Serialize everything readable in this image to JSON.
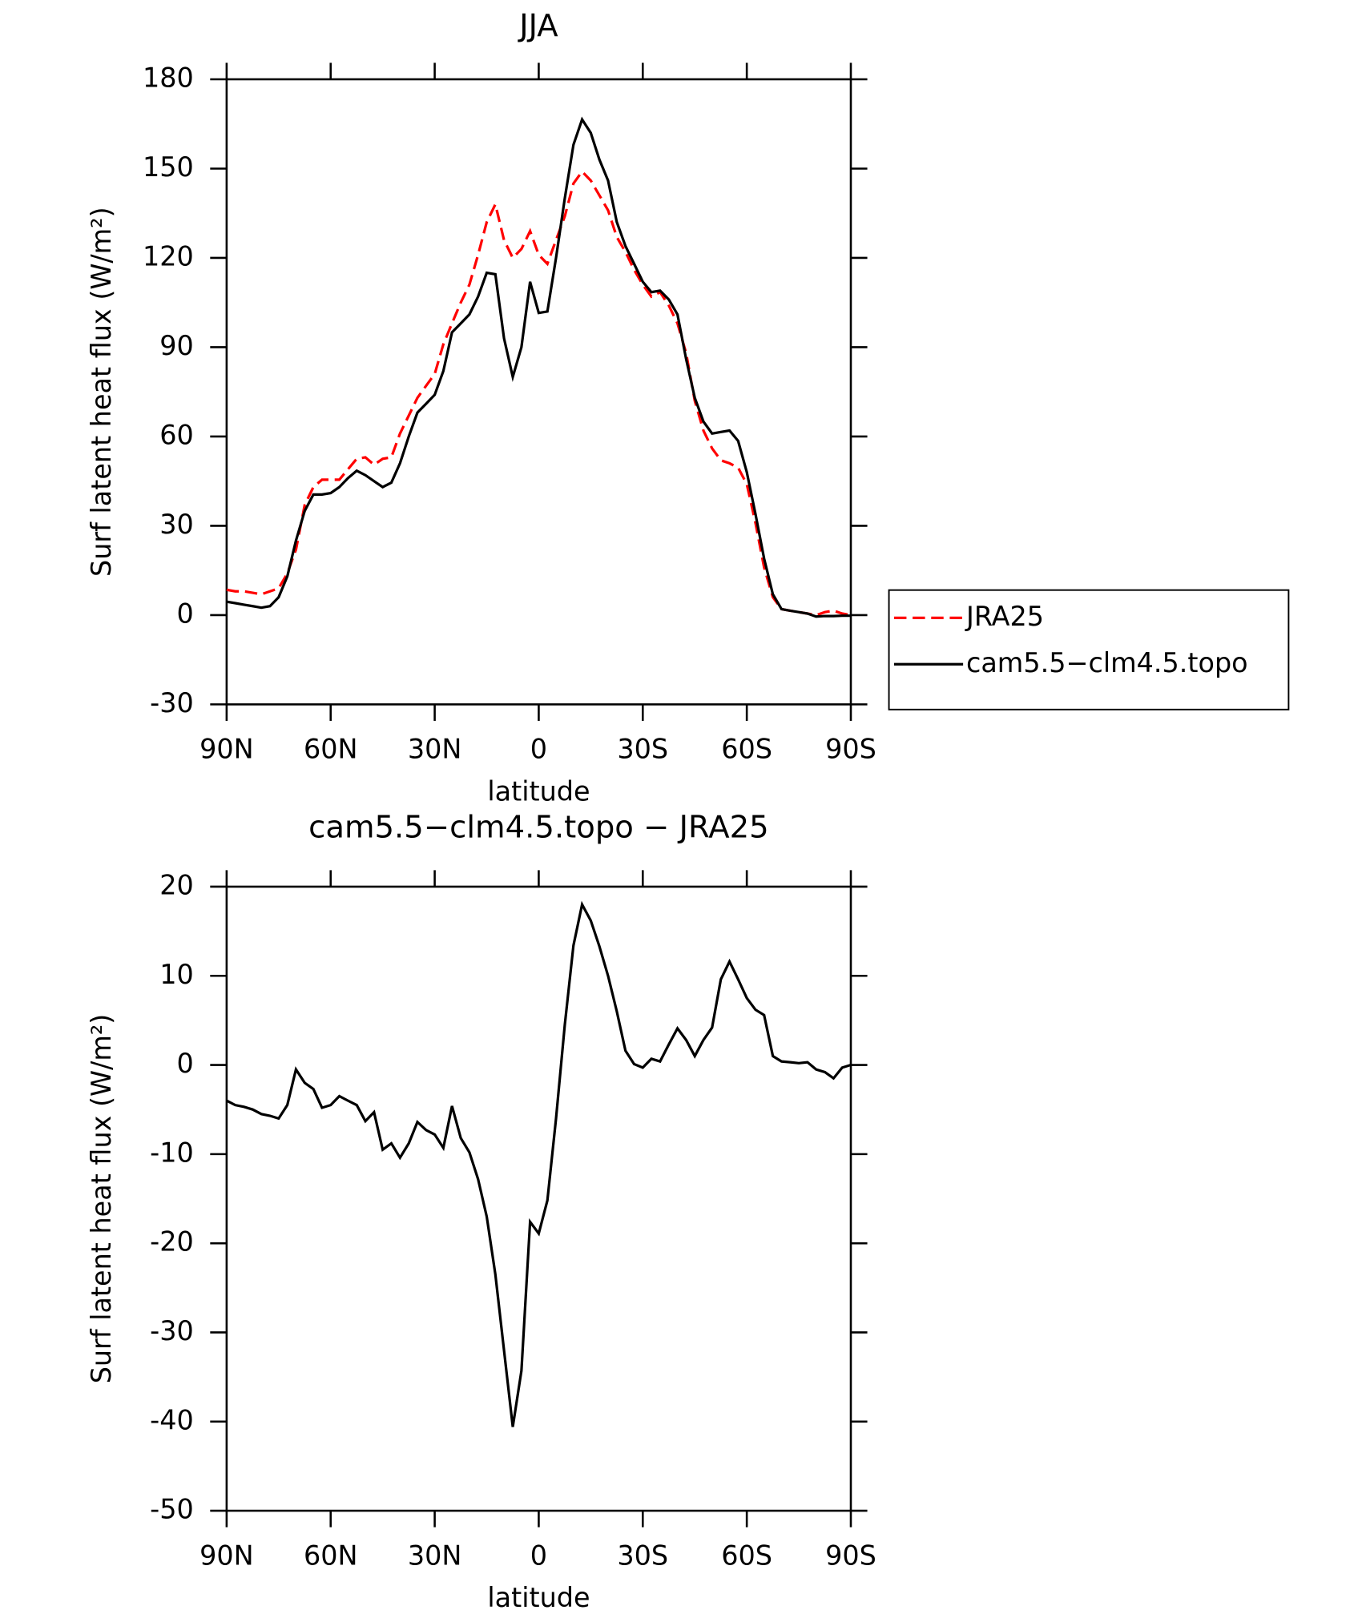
{
  "chart_data": [
    {
      "type": "line",
      "title": "JJA",
      "xlabel": "latitude",
      "ylabel": "Surf latent heat flux (W/m²)",
      "x": [
        90,
        87.5,
        85,
        82.5,
        80,
        77.5,
        75,
        72.5,
        70,
        67.5,
        65,
        62.5,
        60,
        57.5,
        55,
        52.5,
        50,
        47.5,
        45,
        42.5,
        40,
        37.5,
        35,
        32.5,
        30,
        27.5,
        25,
        22.5,
        20,
        17.5,
        15,
        12.5,
        10,
        7.5,
        5,
        2.5,
        0,
        -2.5,
        -5,
        -7.5,
        -10,
        -12.5,
        -15,
        -17.5,
        -20,
        -22.5,
        -25,
        -27.5,
        -30,
        -32.5,
        -35,
        -37.5,
        -40,
        -42.5,
        -45,
        -47.5,
        -50,
        -52.5,
        -55,
        -57.5,
        -60,
        -62.5,
        -65,
        -67.5,
        -70,
        -72.5,
        -75,
        -77.5,
        -80,
        -82.5,
        -85,
        -87.5,
        -90
      ],
      "series": [
        {
          "name": "JRA25",
          "color": "#ff0000",
          "style": "dashed",
          "values": [
            8.5,
            8,
            8,
            7.5,
            7,
            8,
            9,
            14,
            22,
            37,
            43,
            45.5,
            45.5,
            45.5,
            49,
            52.5,
            53,
            50.5,
            52.5,
            53,
            61,
            67,
            73,
            77,
            81,
            91,
            98,
            105,
            111,
            121,
            132,
            138,
            126,
            120,
            123,
            129,
            121,
            118,
            126,
            134,
            145,
            149,
            146,
            141,
            136,
            127,
            122,
            116,
            111,
            107,
            108.5,
            104,
            98,
            88,
            72,
            62,
            56,
            52,
            51,
            49.5,
            44,
            31,
            16,
            6,
            2,
            1.5,
            1,
            0.5,
            0,
            1,
            1.5,
            0.5,
            0
          ]
        },
        {
          "name": "cam5.5−clm4.5.topo",
          "color": "#000000",
          "style": "solid",
          "values": [
            4.5,
            4,
            3.5,
            3,
            2.5,
            3,
            6,
            13,
            25,
            35,
            40.5,
            40.5,
            41,
            43,
            46,
            48.5,
            47,
            45,
            43,
            44.5,
            51,
            60,
            68,
            71,
            74,
            82,
            95,
            98,
            101,
            107,
            115,
            114.5,
            93,
            80,
            90,
            112,
            101.5,
            102,
            120,
            140,
            158,
            166.5,
            162,
            153,
            146,
            132,
            124,
            118,
            112,
            108.5,
            109,
            106,
            101,
            86,
            73,
            65,
            61,
            61.5,
            62,
            58.5,
            48,
            34,
            19,
            7,
            2,
            1.5,
            1,
            0.5,
            -0.5,
            -0.3,
            -0.3,
            -0.2,
            -0.2
          ]
        }
      ],
      "xlim": [
        90,
        -90
      ],
      "xticks": [
        {
          "value": 90,
          "label": "90N"
        },
        {
          "value": 60,
          "label": "60N"
        },
        {
          "value": 30,
          "label": "30N"
        },
        0,
        {
          "value": -30,
          "label": "30S"
        },
        {
          "value": -60,
          "label": "60S"
        },
        {
          "value": -90,
          "label": "90S"
        }
      ],
      "ylim": [
        -30,
        180
      ],
      "yticks": [
        -30,
        0,
        30,
        60,
        90,
        120,
        150,
        180
      ],
      "legend": "outside-right"
    },
    {
      "type": "line",
      "title": "cam5.5−clm4.5.topo − JRA25",
      "xlabel": "latitude",
      "ylabel": "Surf latent heat flux (W/m²)",
      "x": [
        90,
        87.5,
        85,
        82.5,
        80,
        77.5,
        75,
        72.5,
        70,
        67.5,
        65,
        62.5,
        60,
        57.5,
        55,
        52.5,
        50,
        47.5,
        45,
        42.5,
        40,
        37.5,
        35,
        32.5,
        30,
        27.5,
        25,
        22.5,
        20,
        17.5,
        15,
        12.5,
        10,
        7.5,
        5,
        2.5,
        0,
        -2.5,
        -5,
        -7.5,
        -10,
        -12.5,
        -15,
        -17.5,
        -20,
        -22.5,
        -25,
        -27.5,
        -30,
        -32.5,
        -35,
        -37.5,
        -40,
        -42.5,
        -45,
        -47.5,
        -50,
        -52.5,
        -55,
        -57.5,
        -60,
        -62.5,
        -65,
        -67.5,
        -70,
        -72.5,
        -75,
        -77.5,
        -80,
        -82.5,
        -85,
        -87.5,
        -90
      ],
      "series": [
        {
          "color": "#000000",
          "style": "solid",
          "values": [
            -4,
            -4.5,
            -4.7,
            -5,
            -5.5,
            -5.7,
            -6,
            -4.5,
            -0.5,
            -2,
            -2.7,
            -4.8,
            -4.5,
            -3.5,
            -4,
            -4.5,
            -6.3,
            -5.3,
            -9.5,
            -8.8,
            -10.4,
            -8.8,
            -6.4,
            -7.3,
            -7.8,
            -9.3,
            -4.6,
            -8.2,
            -9.8,
            -12.8,
            -17,
            -23.5,
            -32,
            -40.6,
            -34.3,
            -17.6,
            -18.9,
            -15.2,
            -6,
            4.5,
            13.4,
            18,
            16.2,
            13.3,
            10,
            6,
            1.6,
            0.1,
            -0.3,
            0.7,
            0.4,
            2.3,
            4.1,
            2.8,
            1,
            2.8,
            4.2,
            9.6,
            11.6,
            9.6,
            7.5,
            6.2,
            5.6,
            1,
            0.4,
            0.3,
            0.2,
            0.3,
            -0.5,
            -0.8,
            -1.5,
            -0.3,
            0
          ]
        }
      ],
      "xlim": [
        90,
        -90
      ],
      "xticks": [
        {
          "value": 90,
          "label": "90N"
        },
        {
          "value": 60,
          "label": "60N"
        },
        {
          "value": 30,
          "label": "30N"
        },
        0,
        {
          "value": -30,
          "label": "30S"
        },
        {
          "value": -60,
          "label": "60S"
        },
        {
          "value": -90,
          "label": "90S"
        }
      ],
      "ylim": [
        -50,
        20
      ],
      "yticks": [
        -50,
        -40,
        -30,
        -20,
        -10,
        0,
        10,
        20
      ]
    }
  ]
}
